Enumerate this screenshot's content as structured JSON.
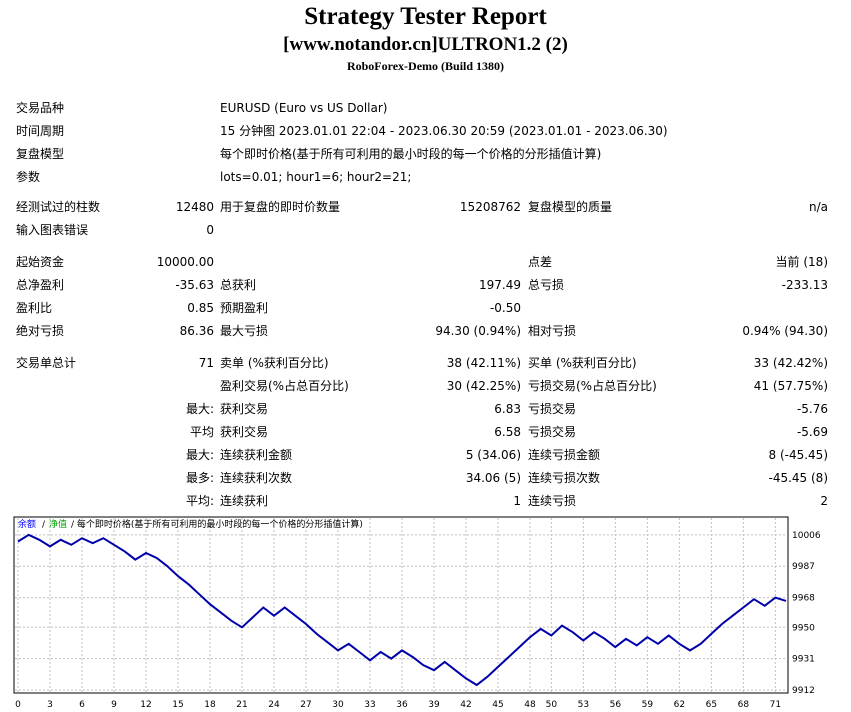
{
  "header": {
    "title": "Strategy Tester Report",
    "ea": "[www.notandor.cn]ULTRON1.2 (2)",
    "server": "RoboForex-Demo (Build 1380)"
  },
  "info": {
    "symbol_label": "交易品种",
    "symbol_value": "EURUSD (Euro vs US Dollar)",
    "period_label": "时间周期",
    "period_value": "15 分钟图 2023.01.01 22:04 - 2023.06.30 20:59 (2023.01.01 - 2023.06.30)",
    "model_label": "复盘模型",
    "model_value": "每个即时价格(基于所有可利用的最小时段的每一个价格的分形插值计算)",
    "params_label": "参数",
    "params_value": "lots=0.01; hour1=6; hour2=21;"
  },
  "bars": {
    "bars_label": "经测试过的柱数",
    "bars_value": "12480",
    "ticks_label": "用于复盘的即时价数量",
    "ticks_value": "15208762",
    "quality_label": "复盘模型的质量",
    "quality_value": "n/a",
    "errors_label": "输入图表错误",
    "errors_value": "0"
  },
  "stats": {
    "deposit_label": "起始资金",
    "deposit_value": "10000.00",
    "spread_label": "点差",
    "spread_value": "当前 (18)",
    "net_label": "总净盈利",
    "net_value": "-35.63",
    "gross_profit_label": "总获利",
    "gross_profit_value": "197.49",
    "gross_loss_label": "总亏损",
    "gross_loss_value": "-233.13",
    "pf_label": "盈利比",
    "pf_value": "0.85",
    "expected_label": "预期盈利",
    "expected_value": "-0.50",
    "abs_dd_label": "绝对亏损",
    "abs_dd_value": "86.36",
    "max_dd_label": "最大亏损",
    "max_dd_value": "94.30 (0.94%)",
    "rel_dd_label": "相对亏损",
    "rel_dd_value": "0.94% (94.30)"
  },
  "trades": {
    "total_label": "交易单总计",
    "total_value": "71",
    "short_label": "卖单 (%获利百分比)",
    "short_value": "38 (42.11%)",
    "long_label": "买单 (%获利百分比)",
    "long_value": "33 (42.42%)",
    "profit_trades_label": "盈利交易(%占总百分比)",
    "profit_trades_value": "30 (42.25%)",
    "loss_trades_label": "亏损交易(%占总百分比)",
    "loss_trades_value": "41 (57.75%)",
    "max_label": "最大:",
    "max_profit_label": "获利交易",
    "max_profit_value": "6.83",
    "max_loss_label": "亏损交易",
    "max_loss_value": "-5.76",
    "avg_label": "平均",
    "avg_profit_label": "获利交易",
    "avg_profit_value": "6.58",
    "avg_loss_label": "亏损交易",
    "avg_loss_value": "-5.69",
    "max2_label": "最大:",
    "cons_wins_money_label": "连续获利金额",
    "cons_wins_money_value": "5 (34.06)",
    "cons_losses_money_label": "连续亏损金额",
    "cons_losses_money_value": "8 (-45.45)",
    "max3_label": "最多:",
    "cons_profit_label": "连续获利次数",
    "cons_profit_value": "34.06 (5)",
    "cons_loss_label": "连续亏损次数",
    "cons_loss_value": "-45.45 (8)",
    "avg2_label": "平均:",
    "avg_cons_wins_label": "连续获利",
    "avg_cons_wins_value": "1",
    "avg_cons_losses_label": "连续亏损",
    "avg_cons_losses_value": "2"
  },
  "chart_data": {
    "type": "line",
    "legend": {
      "balance": "余额",
      "sep": "/",
      "equity": "净值",
      "desc": "/ 每个即时价格(基于所有可利用的最小时段的每一个价格的分形插值计算)"
    },
    "colors": {
      "balance": "#0000aa",
      "grid": "#c0c0c0",
      "legend_balance": "#0000ff",
      "legend_equity": "#00a000"
    },
    "x_ticks": [
      0,
      3,
      6,
      9,
      12,
      15,
      18,
      21,
      24,
      27,
      30,
      33,
      36,
      39,
      42,
      45,
      48,
      50,
      53,
      56,
      59,
      62,
      65,
      68,
      71
    ],
    "y_ticks": [
      10006,
      9987,
      9968,
      9950,
      9931,
      9912
    ],
    "xlim": [
      0,
      72
    ],
    "ylim": [
      9912,
      10015
    ],
    "series": [
      {
        "x": [
          0,
          1,
          2,
          3,
          4,
          5,
          6,
          7,
          8,
          9,
          10,
          11,
          12,
          13,
          14,
          15,
          16,
          17,
          18,
          19,
          20,
          21,
          22,
          23,
          24,
          25,
          26,
          27,
          28,
          29,
          30,
          31,
          32,
          33,
          34,
          35,
          36,
          37,
          38,
          39,
          40,
          41,
          42,
          43,
          44,
          45,
          46,
          47,
          48,
          49,
          50,
          51,
          52,
          53,
          54,
          55,
          56,
          57,
          58,
          59,
          60,
          61,
          62,
          63,
          64,
          65,
          66,
          67,
          68,
          69,
          70,
          71,
          72
        ],
        "y": [
          10002,
          10006,
          10003,
          9999,
          10003,
          10000,
          10004,
          10001,
          10004,
          10000,
          9996,
          9991,
          9995,
          9992,
          9987,
          9981,
          9976,
          9970,
          9964,
          9959,
          9954,
          9950,
          9956,
          9962,
          9957,
          9962,
          9957,
          9952,
          9946,
          9941,
          9936,
          9940,
          9935,
          9930,
          9935,
          9931,
          9936,
          9932,
          9927,
          9924,
          9929,
          9924,
          9919,
          9915,
          9920,
          9926,
          9932,
          9938,
          9944,
          9949,
          9945,
          9951,
          9947,
          9942,
          9947,
          9943,
          9938,
          9943,
          9939,
          9944,
          9940,
          9945,
          9940,
          9936,
          9940,
          9946,
          9952,
          9957,
          9962,
          9967,
          9963,
          9968,
          9966
        ]
      }
    ]
  }
}
